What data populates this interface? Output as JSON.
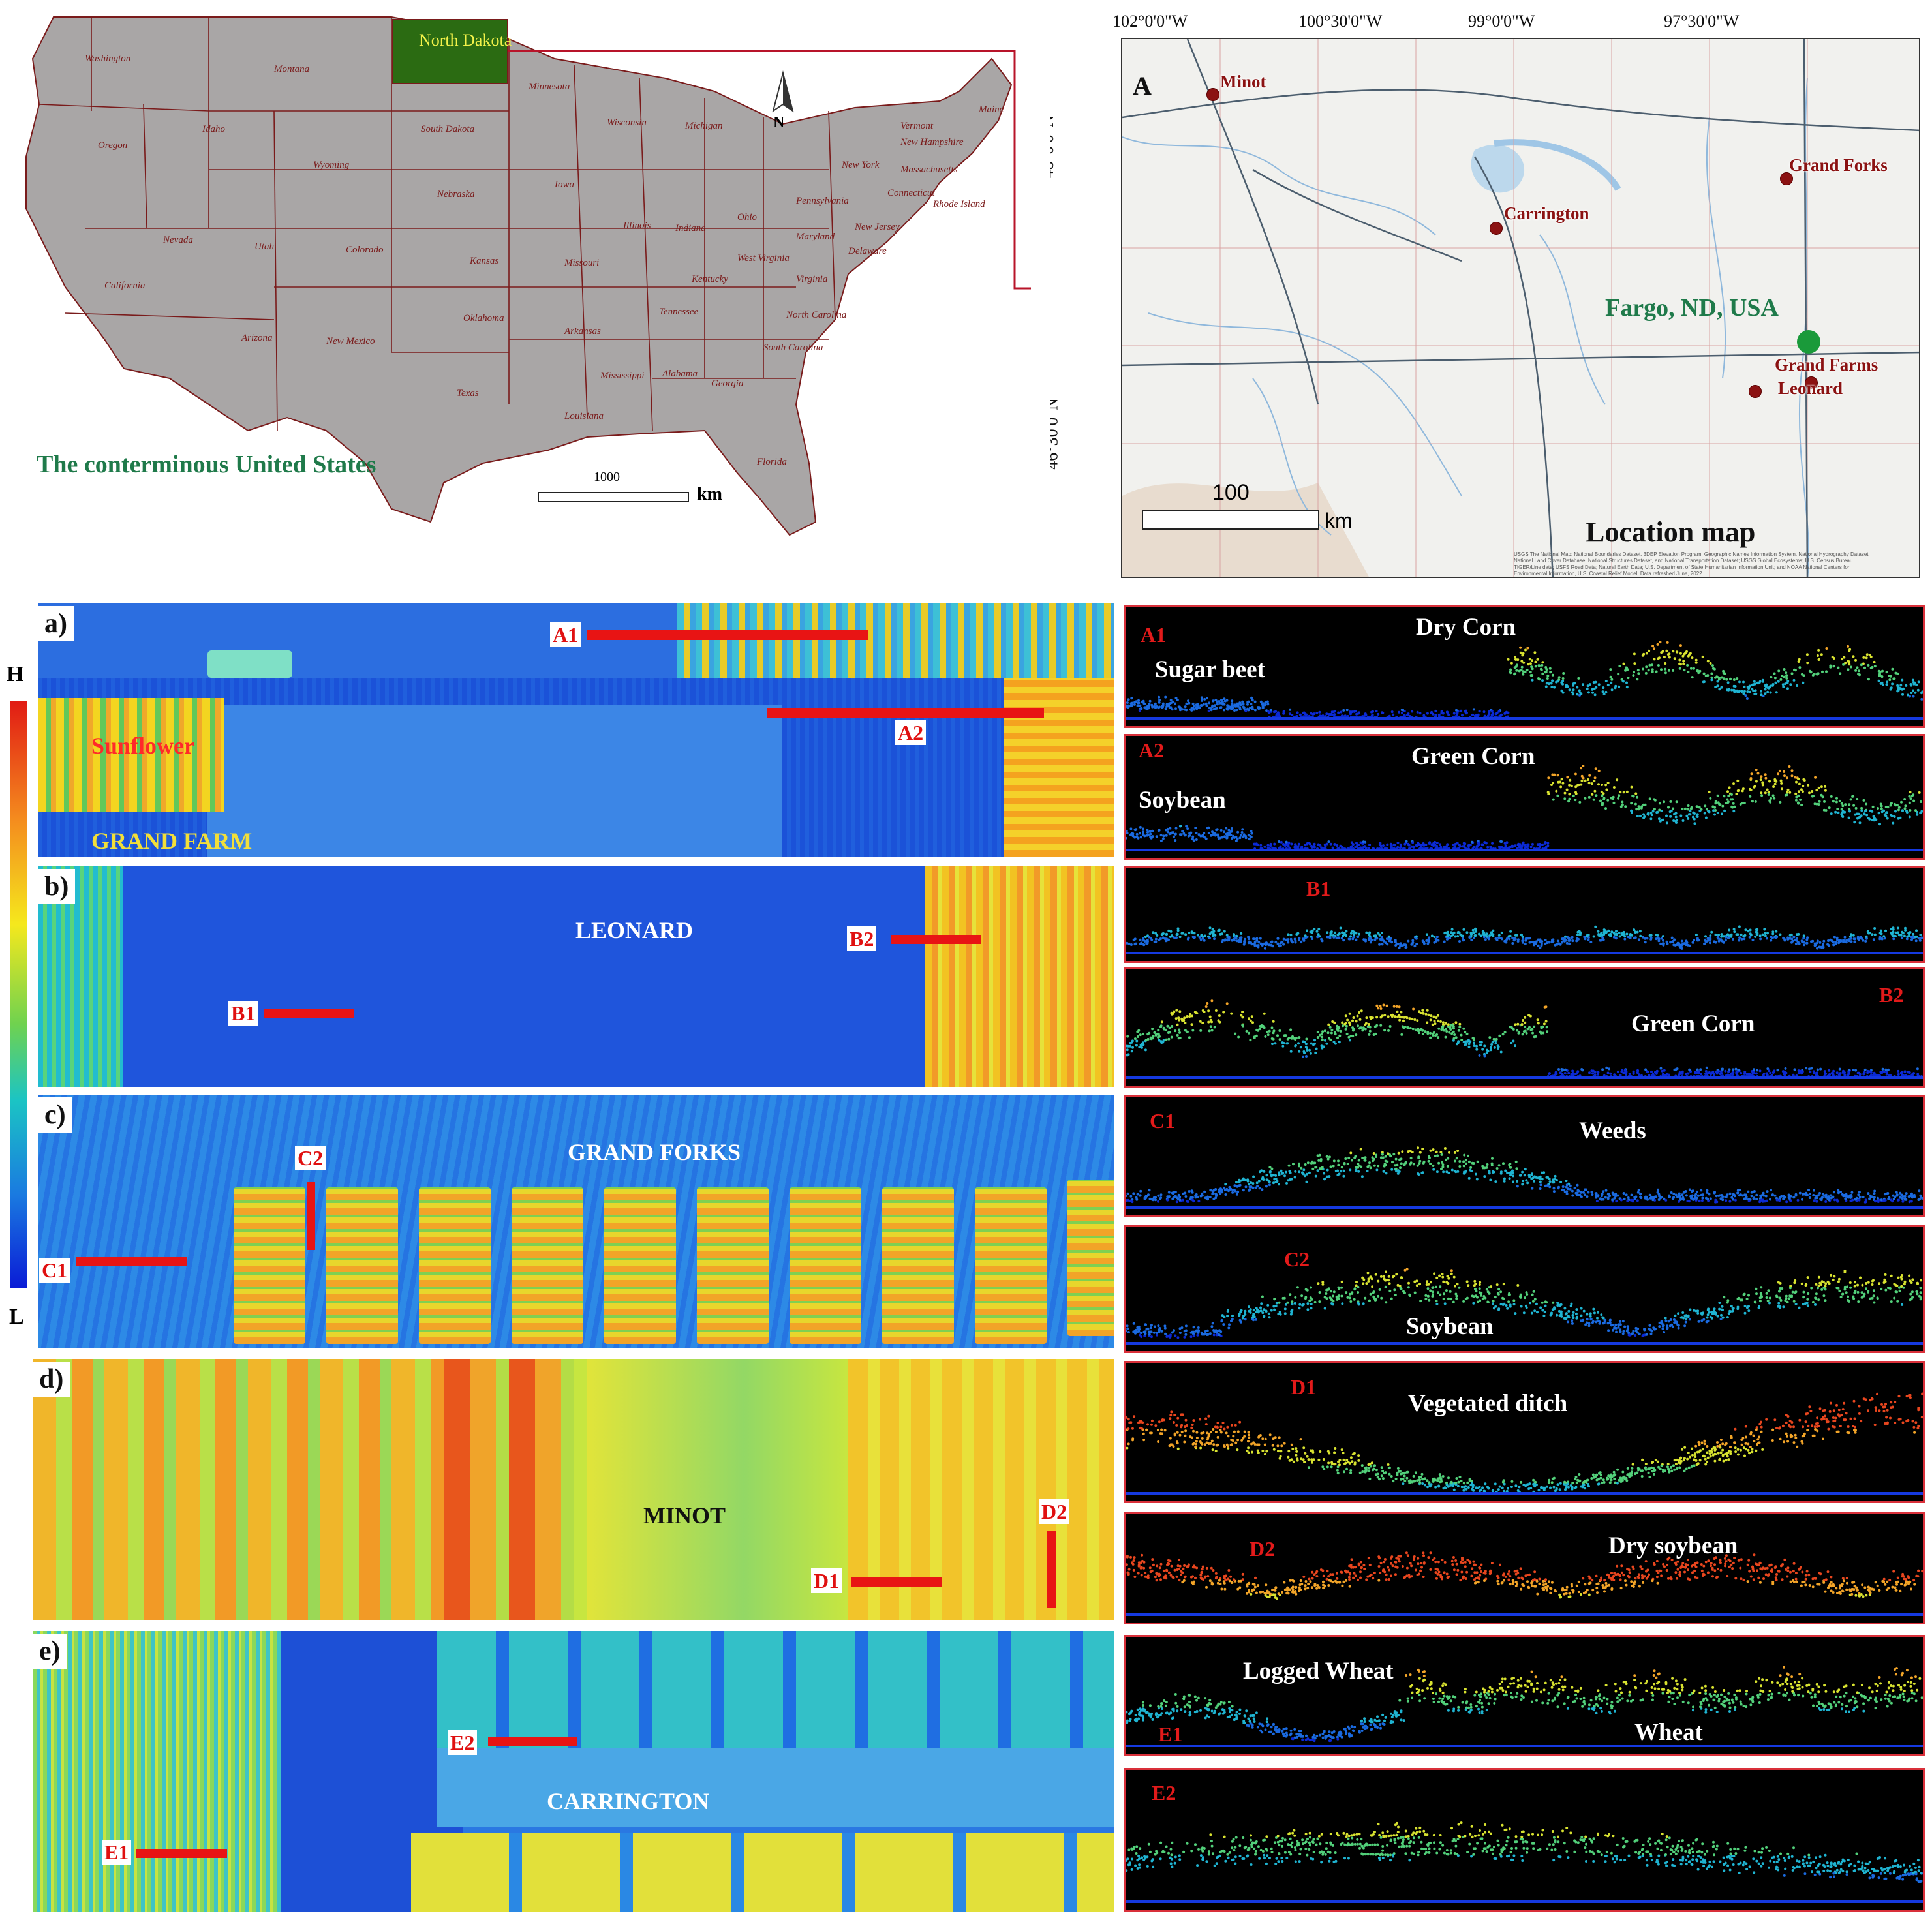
{
  "us_map": {
    "title": "The conterminous United States",
    "highlight_state": "North Dakota",
    "north_label": "N",
    "scale_value": "1000",
    "scale_unit": "km",
    "states": [
      "Washington",
      "Montana",
      "Oregon",
      "Idaho",
      "Wyoming",
      "South Dakota",
      "Minnesota",
      "Wisconsin",
      "Michigan",
      "Maine",
      "Vermont",
      "New Hampshire",
      "Massachusetts",
      "Connecticut",
      "Rhode Island",
      "New York",
      "Pennsylvania",
      "New Jersey",
      "Delaware",
      "Maryland",
      "Ohio",
      "West Virginia",
      "Virginia",
      "Indiana",
      "Illinois",
      "Iowa",
      "Nebraska",
      "Nevada",
      "Utah",
      "Colorado",
      "Kansas",
      "Missouri",
      "Kentucky",
      "Tennessee",
      "North Carolina",
      "South Carolina",
      "Georgia",
      "Alabama",
      "Mississippi",
      "Louisiana",
      "Arkansas",
      "Oklahoma",
      "Texas",
      "New Mexico",
      "Arizona",
      "California",
      "Florida"
    ]
  },
  "location_map": {
    "panel_letter": "A",
    "title": "Location map",
    "lon_ticks": [
      "102°0'0\"W",
      "100°30'0\"W",
      "99°0'0\"W",
      "97°30'0\"W"
    ],
    "lat_ticks": [
      "48°0'0\"N",
      "46°30'0\"N"
    ],
    "scale_value": "100",
    "scale_unit": "km",
    "hub": "Fargo, ND, USA",
    "cities": [
      "Minot",
      "Grand Forks",
      "Carrington",
      "Grand Farms",
      "Leonard"
    ],
    "attribution": "USGS The National Map: National Boundaries Dataset, 3DEP Elevation Program, Geographic Names Information System, National Hydrography Dataset, National Land Cover Database, National Structures Dataset, and National Transportation Dataset; USGS Global Ecosystems; U.S. Census Bureau TIGER/Line data; USFS Road Data; Natural Earth Data; U.S. Department of State Humanitarian Information Unit; and NOAA National Centers for Environmental Information, U.S. Coastal Relief Model. Data refreshed June, 2022."
  },
  "colorbar": {
    "high": "H",
    "low": "L"
  },
  "panels": [
    {
      "tag": "a)",
      "site": "GRAND FARM",
      "crop_label": "Sunflower",
      "transects": [
        "A1",
        "A2"
      ]
    },
    {
      "tag": "b)",
      "site": "LEONARD",
      "transects": [
        "B1",
        "B2"
      ]
    },
    {
      "tag": "c)",
      "site": "GRAND FORKS",
      "transects": [
        "C1",
        "C2"
      ]
    },
    {
      "tag": "d)",
      "site": "MINOT",
      "transects": [
        "D1",
        "D2"
      ]
    },
    {
      "tag": "e)",
      "site": "CARRINGTON",
      "transects": [
        "E1",
        "E2"
      ]
    }
  ],
  "profiles": [
    {
      "tag": "A1",
      "labels": [
        "Dry Corn",
        "Sugar beet"
      ]
    },
    {
      "tag": "A2",
      "labels": [
        "Green Corn",
        "Soybean"
      ]
    },
    {
      "tag": "B1",
      "labels": []
    },
    {
      "tag": "B2",
      "labels": [
        "Green Corn"
      ]
    },
    {
      "tag": "C1",
      "labels": [
        "Weeds"
      ]
    },
    {
      "tag": "C2",
      "labels": [
        "Soybean"
      ]
    },
    {
      "tag": "D1",
      "labels": [
        "Vegetated ditch"
      ]
    },
    {
      "tag": "D2",
      "labels": [
        "Dry soybean"
      ]
    },
    {
      "tag": "E1",
      "labels": [
        "Logged Wheat",
        "Wheat"
      ]
    },
    {
      "tag": "E2",
      "labels": []
    }
  ]
}
